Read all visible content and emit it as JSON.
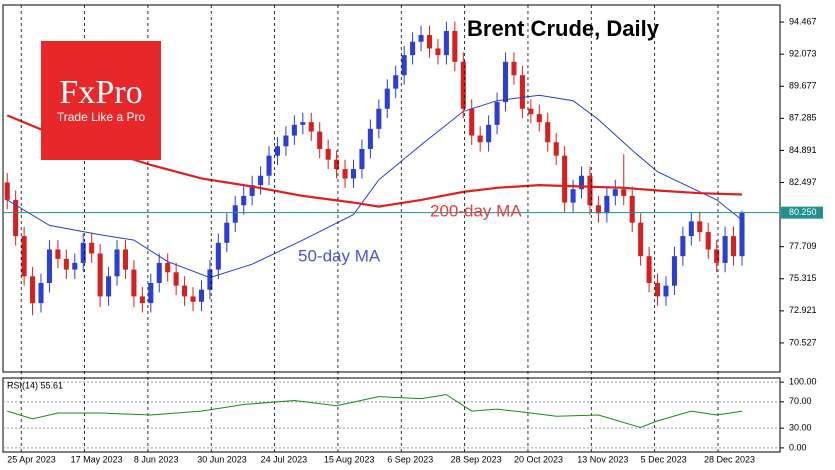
{
  "chart_data": [
    {
      "type": "candlestick",
      "title": "Brent Crude, Daily",
      "open": [
        82.5,
        81.2,
        78.5,
        75.5,
        73.5,
        75,
        77.5,
        76.8,
        76,
        76.5,
        78,
        77.2,
        74,
        75.5,
        77.5,
        76,
        74,
        73.5,
        75,
        76.5,
        75.8,
        74.8,
        74,
        73.6,
        74.5,
        76,
        78,
        79.5,
        80.8,
        81.5,
        82.3,
        83,
        84.5,
        85.2,
        86,
        86.8,
        87,
        86.3,
        85,
        84.2,
        83.5,
        82.8,
        83.5,
        85,
        86.5,
        88,
        89.5,
        90.5,
        92,
        93,
        93.5,
        92.5,
        92,
        93.8,
        91.5,
        88,
        86,
        85.5,
        86.8,
        88.5,
        91.5,
        90.5,
        88,
        87.6,
        87,
        85.5,
        84.5,
        81,
        82,
        83,
        80.8,
        80.2,
        81.5,
        82,
        81.5,
        79.5,
        77,
        75,
        74,
        74.8,
        77,
        78.5,
        79.6,
        78.8,
        77.5,
        76.5,
        78.5,
        77
      ],
      "high": [
        83.2,
        81.9,
        79.2,
        76.2,
        75.7,
        78.2,
        78.2,
        77.5,
        77.2,
        78.7,
        78.7,
        77.9,
        76.2,
        78.2,
        78.2,
        76.7,
        74.7,
        75.7,
        77.2,
        77.2,
        76.5,
        75.5,
        74.7,
        75.2,
        76.7,
        78.7,
        80.2,
        81.5,
        82.2,
        83,
        83.7,
        85.2,
        85.9,
        86.7,
        87.5,
        87.7,
        87.7,
        87,
        85.7,
        84.9,
        84.2,
        84.2,
        85.7,
        87.2,
        88.7,
        90.2,
        91.2,
        92.7,
        93.7,
        94.2,
        94.2,
        93.2,
        94.5,
        94.5,
        92.2,
        88.7,
        86.7,
        87.5,
        89.2,
        92.2,
        92.2,
        91.2,
        88.7,
        88.3,
        87.7,
        86.2,
        85.2,
        82.7,
        83.7,
        83.7,
        81.5,
        82.2,
        82.7,
        84.6,
        82.2,
        80.2,
        77.7,
        75.7,
        75.5,
        77.7,
        79.2,
        80.3,
        80.3,
        79.5,
        78.2,
        79.2,
        79.2,
        80.4
      ],
      "low": [
        80.5,
        77.8,
        74.8,
        72.6,
        72.8,
        74.3,
        76.1,
        75.3,
        75.3,
        75.8,
        76.5,
        73.2,
        73.3,
        74.8,
        75.3,
        73.2,
        72.8,
        72.8,
        74.3,
        75.1,
        74.1,
        73.3,
        72.9,
        72.9,
        73.8,
        75.3,
        77.3,
        78.8,
        80.1,
        80.8,
        81.6,
        82.3,
        83.8,
        84.5,
        85.3,
        86.1,
        85.6,
        84.3,
        83.5,
        82.8,
        82.1,
        82.1,
        82.8,
        84.3,
        85.8,
        87.3,
        88.8,
        89.8,
        91.3,
        92.3,
        91.8,
        91.3,
        91.3,
        90.8,
        87.3,
        85.3,
        84.8,
        84.8,
        86.1,
        87.8,
        89.8,
        87.3,
        86.9,
        86.3,
        84.8,
        83.8,
        80.3,
        80.3,
        81.3,
        80.1,
        79.5,
        79.5,
        80.8,
        80.8,
        78.8,
        76.3,
        74.3,
        73.3,
        73.3,
        74.1,
        76.3,
        77.8,
        78.1,
        76.8,
        75.8,
        75.8,
        76.3,
        76.3
      ],
      "close": [
        81.2,
        78.5,
        75.5,
        73.5,
        75,
        77.5,
        76.8,
        76,
        76.5,
        78,
        77.2,
        74,
        75.5,
        77.5,
        76,
        74,
        73.5,
        75,
        76.5,
        75.8,
        74.8,
        74,
        73.6,
        74.5,
        76,
        78,
        79.5,
        80.8,
        81.5,
        82.3,
        83,
        84.5,
        85.2,
        86,
        86.8,
        87,
        86.3,
        85,
        84.2,
        83.5,
        82.8,
        83.5,
        85,
        86.5,
        88,
        89.5,
        90.5,
        92,
        93,
        93.5,
        92.5,
        92,
        93.8,
        91.5,
        88,
        86,
        85.5,
        86.8,
        88.5,
        91.5,
        90.5,
        88,
        87.6,
        87,
        85.5,
        84.5,
        81,
        82,
        83,
        80.8,
        80.2,
        81.5,
        82,
        81.5,
        79.5,
        77,
        75,
        74,
        74.8,
        77,
        78.5,
        79.6,
        78.8,
        77.5,
        76.5,
        78.5,
        77,
        80.25
      ],
      "up_color": "#2b3fd0",
      "down_color": "#d42020",
      "xlim": [
        -0.5,
        91.5
      ],
      "ylim": [
        68.36,
        95.74
      ],
      "yticks": [
        94.467,
        92.073,
        89.677,
        87.285,
        84.891,
        82.497,
        77.709,
        75.315,
        72.921,
        70.527
      ],
      "lines": [
        {
          "name": "50-day MA",
          "color": "#2a3cc8",
          "width": 1,
          "x": [
            0,
            5,
            11,
            15,
            19,
            24,
            29,
            35,
            41,
            44,
            49,
            54,
            58,
            63,
            67,
            70,
            74,
            77,
            81,
            84,
            87
          ],
          "values": [
            81.2,
            79.3,
            78.6,
            78.2,
            76.6,
            75.4,
            76.4,
            78.2,
            80.1,
            82.7,
            85.3,
            87.8,
            88.6,
            89,
            88.6,
            87.2,
            84.9,
            83.3,
            82.1,
            81.2,
            79.7
          ]
        },
        {
          "name": "200-day MA",
          "color": "#e02020",
          "width": 2.2,
          "x": [
            0,
            5,
            11,
            17,
            23,
            29,
            35,
            41,
            44,
            49,
            54,
            58,
            63,
            68,
            73,
            77,
            82,
            87
          ],
          "values": [
            87.5,
            86.2,
            85,
            83.8,
            82.8,
            82.2,
            81.5,
            81,
            80.7,
            81.2,
            81.8,
            82.1,
            82.3,
            82.2,
            82.1,
            81.9,
            81.7,
            81.6
          ]
        }
      ],
      "last_price": {
        "value": 80.25,
        "label": "80.250"
      },
      "last_price_color": "#1e9090",
      "logo": {
        "name": "FxPro",
        "tagline": "Trade Like a Pro"
      }
    },
    {
      "type": "line",
      "title": "RSI(14) 55.61",
      "color": "#1a8a1a",
      "x": [
        0,
        3,
        6,
        11,
        17,
        23,
        28,
        34,
        39,
        44,
        49,
        52,
        55,
        58,
        62,
        65,
        70,
        75,
        77,
        81,
        84,
        87
      ],
      "values": [
        56,
        44,
        53,
        53,
        50,
        56,
        66,
        72,
        64,
        78,
        75,
        81,
        56,
        59,
        53,
        48,
        50,
        31,
        41,
        56,
        50,
        55.61
      ],
      "xlim": [
        -0.5,
        91.5
      ],
      "ylim": [
        -6.25,
        106.25
      ],
      "yticks": [
        {
          "value": 100,
          "label": "100.00"
        },
        {
          "value": 70,
          "label": "70.00"
        },
        {
          "value": 30,
          "label": "30.00"
        },
        {
          "value": 0,
          "label": "0.00"
        }
      ],
      "xticks": [
        {
          "value": 0,
          "label": "25 Apr 2023"
        },
        {
          "value": 7.5,
          "label": "17 May 2023"
        },
        {
          "value": 15,
          "label": "8 Jun 2023"
        },
        {
          "value": 22.5,
          "label": "30 Jun 2023"
        },
        {
          "value": 30,
          "label": "24 Jul 2023"
        },
        {
          "value": 37.5,
          "label": "15 Aug 2023"
        },
        {
          "value": 45,
          "label": "6 Sep 2023"
        },
        {
          "value": 52.5,
          "label": "28 Sep 2023"
        },
        {
          "value": 60,
          "label": "20 Oct 2023"
        },
        {
          "value": 67.5,
          "label": "13 Nov 2023"
        },
        {
          "value": 75,
          "label": "5 Dec 2023"
        },
        {
          "value": 82.5,
          "label": "28 Dec 2023"
        }
      ]
    }
  ]
}
